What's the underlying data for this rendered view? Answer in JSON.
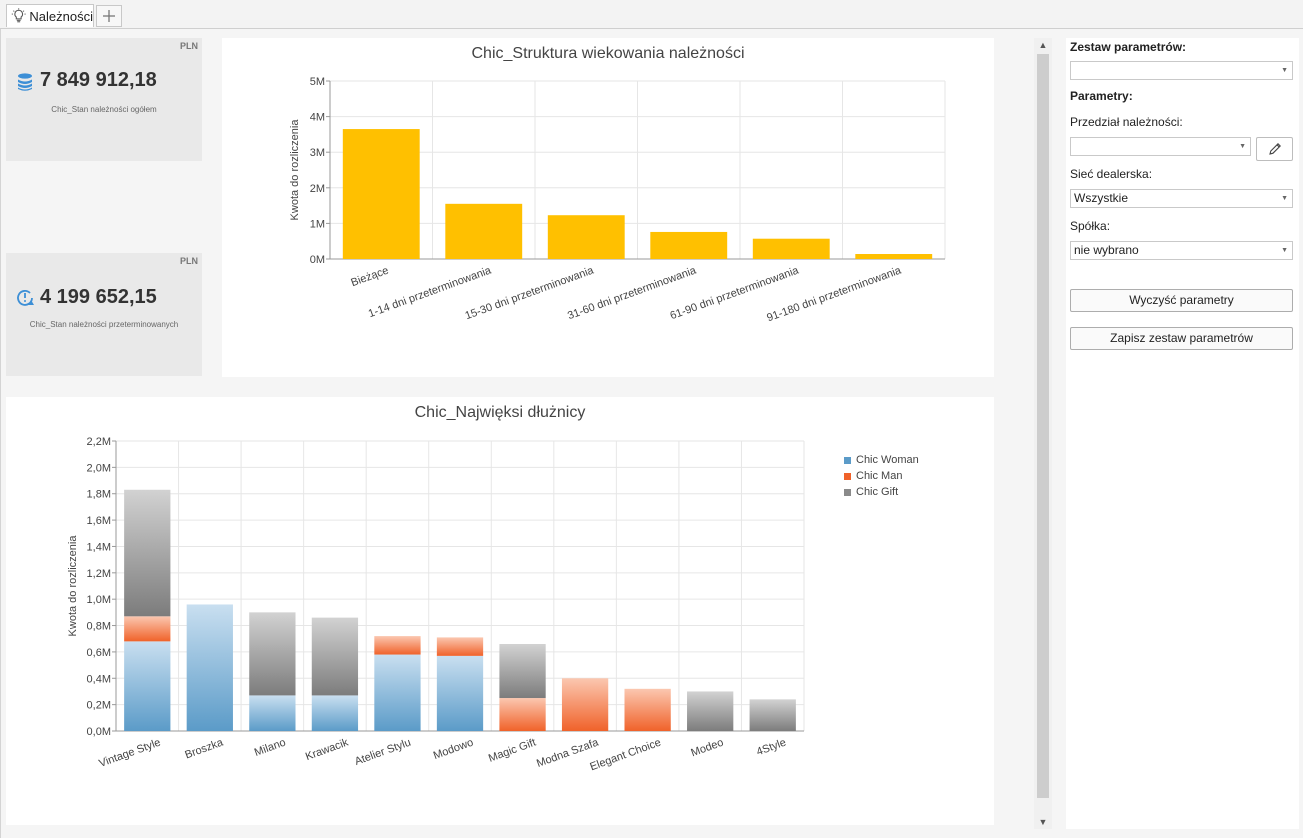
{
  "tabs": [
    {
      "label": "Należności"
    }
  ],
  "tiles": [
    {
      "currency": "PLN",
      "value": "7 849 912,18",
      "label": "Chic_Stan należności ogółem",
      "icon": "coins-stack-icon"
    },
    {
      "currency": "PLN",
      "value": "4 199 652,15",
      "label": "Chic_Stan należności przeterminowanych",
      "icon": "clock-alert-icon"
    }
  ],
  "params": {
    "set_heading": "Zestaw parametrów:",
    "set_value": "",
    "params_heading": "Parametry:",
    "range_label": "Przedział należności:",
    "range_value": "",
    "dealer_label": "Sieć dealerska:",
    "dealer_value": "Wszystkie",
    "company_label": "Spółka:",
    "company_value": "nie wybrano",
    "clear_button": "Wyczyść parametry",
    "save_button": "Zapisz zestaw parametrów"
  },
  "chart_data": [
    {
      "type": "bar",
      "title": "Chic_Struktura wiekowania należności",
      "xlabel": "",
      "ylabel": "Kwota do rozliczenia",
      "categories": [
        "Bieżące",
        "1-14 dni przeterminowania",
        "15-30 dni przeterminowania",
        "31-60 dni przeterminowania",
        "61-90 dni przeterminowania",
        "91-180 dni przeterminowania"
      ],
      "values": [
        3.65,
        1.55,
        1.23,
        0.76,
        0.57,
        0.14
      ],
      "ylim": [
        0,
        5
      ],
      "yticks": [
        "0M",
        "1M",
        "2M",
        "3M",
        "4M",
        "5M"
      ],
      "color": "#ffc000",
      "grid": true
    },
    {
      "type": "bar",
      "stacked": true,
      "title": "Chic_Najwięksi dłużnicy",
      "xlabel": "",
      "ylabel": "Kwota do rozliczenia",
      "categories": [
        "Vintage Style",
        "Broszka",
        "Milano",
        "Krawacik",
        "Atelier Stylu",
        "Modowo",
        "Magic Gift",
        "Modna Szafa",
        "Elegant Choice",
        "Modeo",
        "4Style"
      ],
      "series": [
        {
          "name": "Chic Woman",
          "color": "#5b9bc8",
          "values": [
            0.68,
            0.96,
            0.27,
            0.27,
            0.58,
            0.57,
            0,
            0,
            0,
            0,
            0
          ]
        },
        {
          "name": "Chic Man",
          "color": "#f0622a",
          "values": [
            0.19,
            0,
            0,
            0,
            0.14,
            0.14,
            0.25,
            0.4,
            0.32,
            0,
            0
          ]
        },
        {
          "name": "Chic Gift",
          "color": "#8a8a8a",
          "values": [
            0.96,
            0,
            0.63,
            0.59,
            0,
            0,
            0.41,
            0,
            0,
            0.3,
            0.24
          ]
        }
      ],
      "ylim": [
        0,
        2.2
      ],
      "yticks": [
        "0,0M",
        "0,2M",
        "0,4M",
        "0,6M",
        "0,8M",
        "1,0M",
        "1,2M",
        "1,4M",
        "1,6M",
        "1,8M",
        "2,0M",
        "2,2M"
      ],
      "legend": "right",
      "grid": true
    }
  ]
}
